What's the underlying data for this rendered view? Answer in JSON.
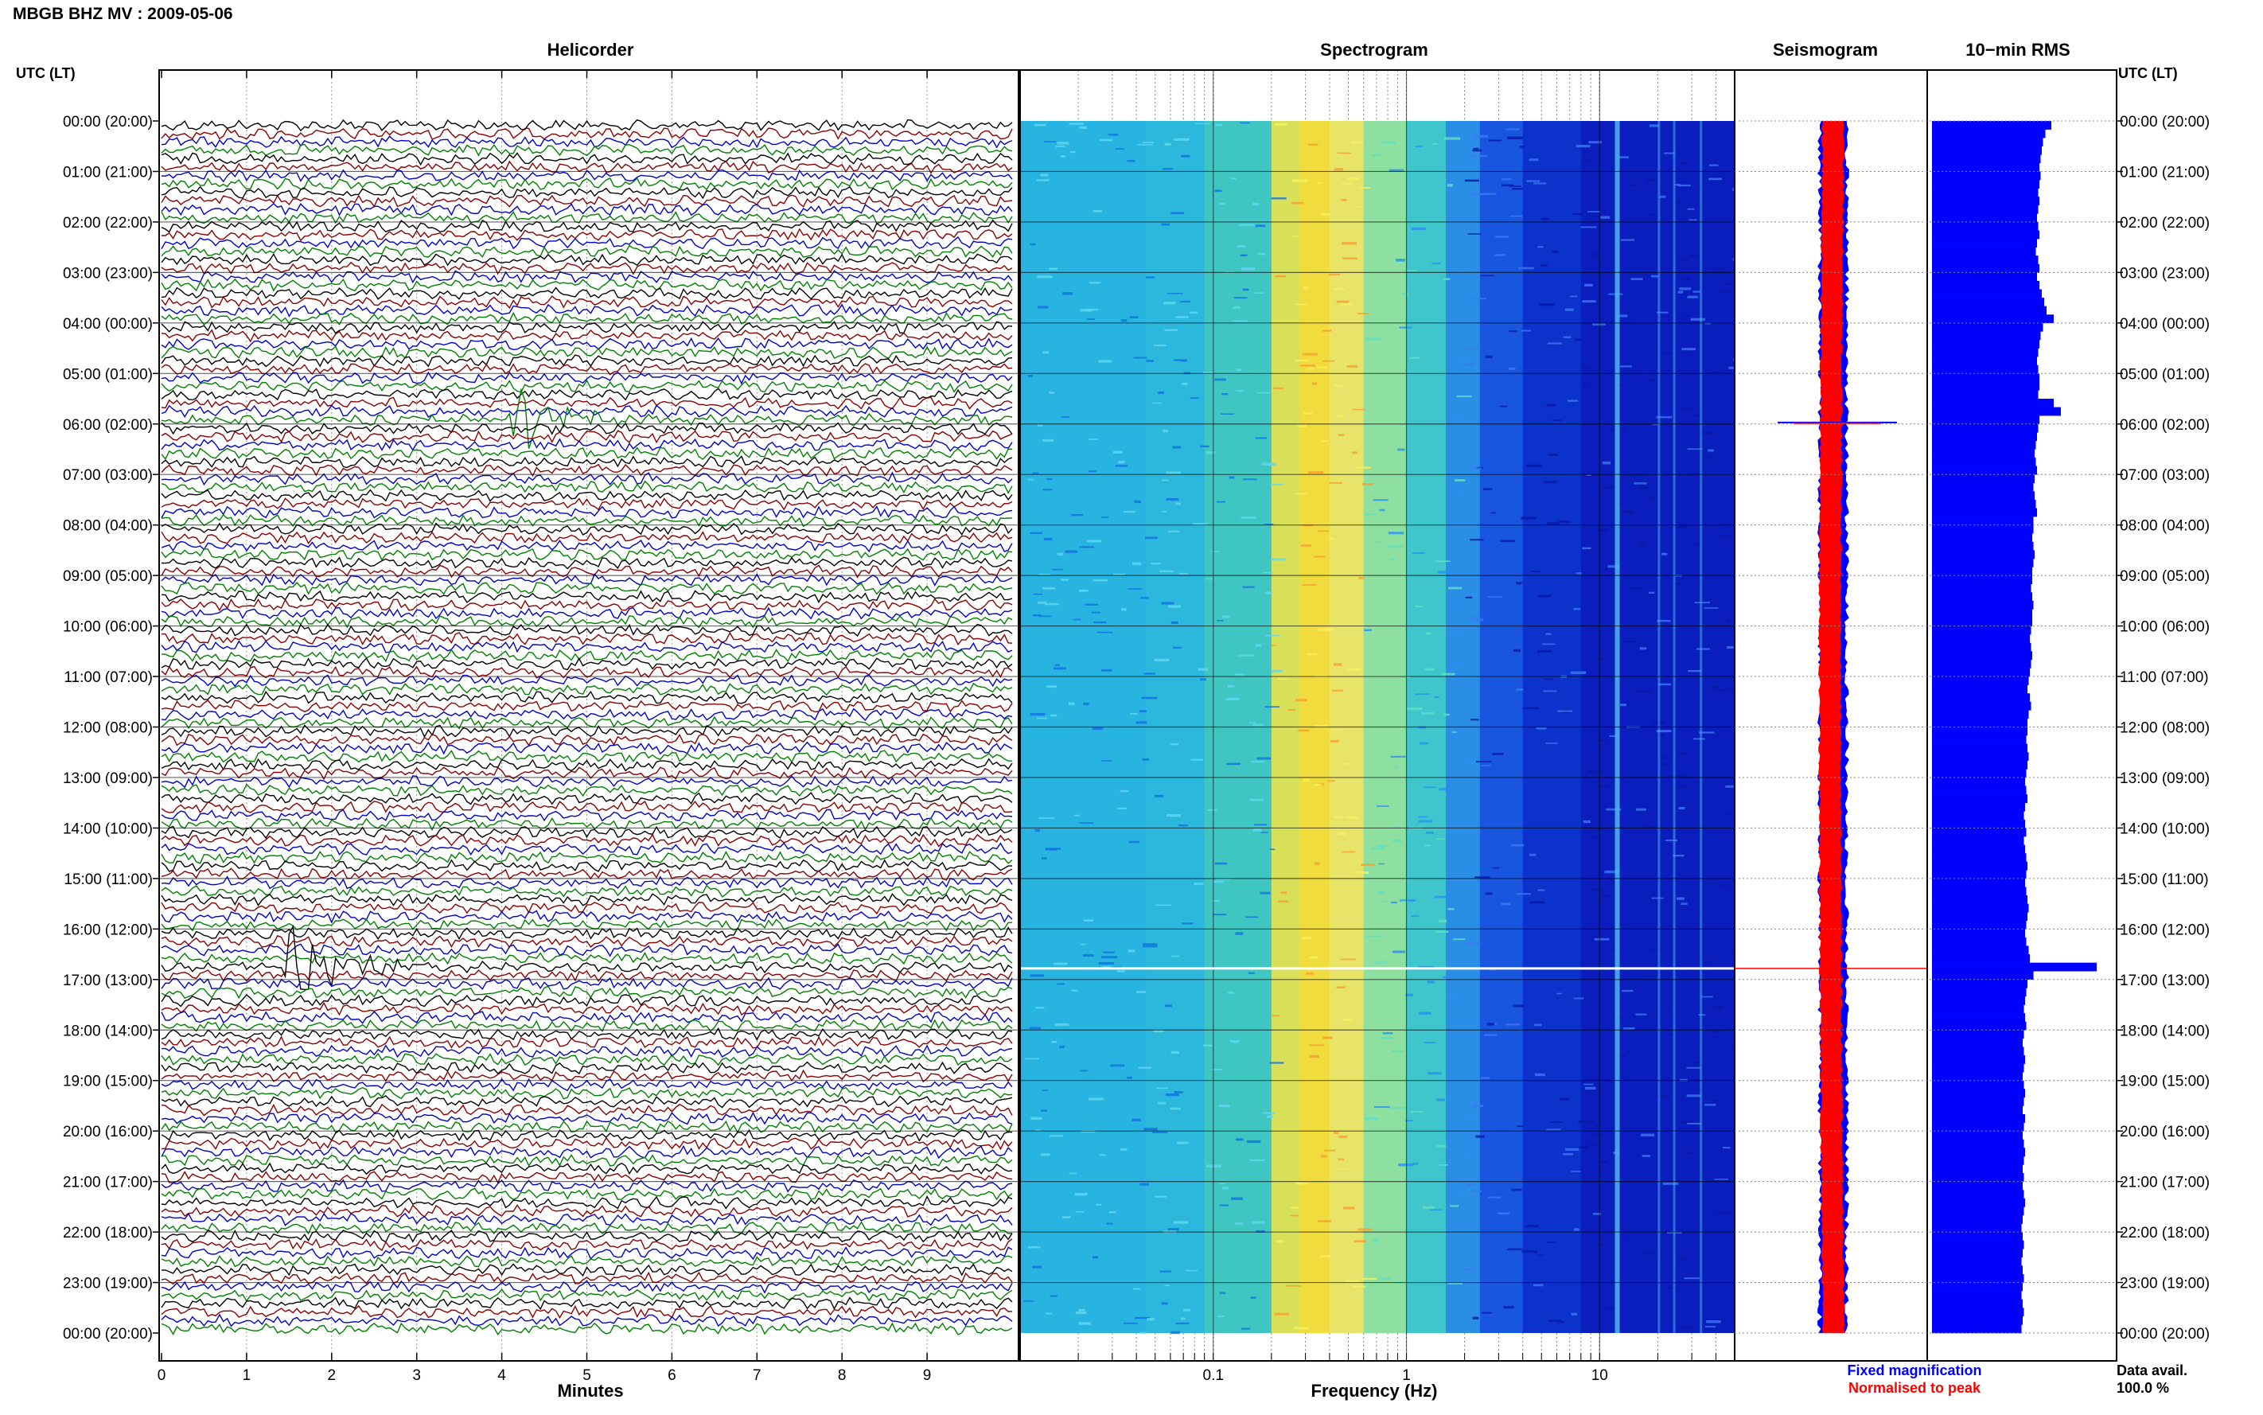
{
  "title": "MBGB BHZ MV : 2009-05-06",
  "panels": {
    "helicorder": "Helicorder",
    "spectrogram": "Spectrogram",
    "seismogram": "Seismogram",
    "rms": "10−min RMS"
  },
  "time_axis_label": "UTC (LT)",
  "legend": {
    "fixed": "Fixed magnification",
    "normalised": "Normalised to peak",
    "fixed_color": "#0000ff",
    "normalised_color": "#ff0000"
  },
  "data_avail": {
    "label": "Data avail.",
    "value": "100.0 %"
  },
  "colors": {
    "trace_cycle": [
      "#000000",
      "#8b0000",
      "#0000cc",
      "#008000"
    ],
    "rms_bar": "#0000ff",
    "seismogram_fill": "#ff0000",
    "spectrogram_colormap": "jet"
  },
  "chart_data": [
    {
      "type": "line",
      "name": "helicorder",
      "title": "Helicorder",
      "xlabel": "Minutes",
      "xlim": [
        0,
        10
      ],
      "x_ticks": [
        0,
        1,
        2,
        3,
        4,
        5,
        6,
        7,
        8,
        9
      ],
      "rows_per_hour": 6,
      "y_ticks": [
        "00:00 (20:00)",
        "01:00 (21:00)",
        "02:00 (22:00)",
        "03:00 (23:00)",
        "04:00 (00:00)",
        "05:00 (01:00)",
        "06:00 (02:00)",
        "07:00 (03:00)",
        "08:00 (04:00)",
        "09:00 (05:00)",
        "10:00 (06:00)",
        "11:00 (07:00)",
        "12:00 (08:00)",
        "13:00 (09:00)",
        "14:00 (10:00)",
        "15:00 (11:00)",
        "16:00 (12:00)",
        "17:00 (13:00)",
        "18:00 (14:00)",
        "19:00 (15:00)",
        "20:00 (16:00)",
        "21:00 (17:00)",
        "22:00 (18:00)",
        "23:00 (19:00)",
        "00:00 (20:00)"
      ],
      "events": [
        {
          "hour": 5.83,
          "minute": 4.2,
          "amplitude": 2.2
        },
        {
          "hour": 16.67,
          "minute": 1.6,
          "amplitude": 3.2
        }
      ]
    },
    {
      "type": "heatmap",
      "name": "spectrogram",
      "title": "Spectrogram",
      "xlabel": "Frequency (Hz)",
      "x_scale": "log",
      "xlim": [
        0.01,
        50
      ],
      "x_tick_labels": [
        "0.1",
        "1",
        "10"
      ],
      "x_tick_values": [
        0.1,
        1,
        10
      ],
      "ylim_hours": [
        0,
        24
      ],
      "peak_band_hz": [
        0.2,
        0.4
      ],
      "narrow_lines_hz": [
        12,
        20,
        24,
        33
      ]
    },
    {
      "type": "area",
      "name": "seismogram",
      "title": "Seismogram",
      "legend": [
        "Fixed magnification",
        "Normalised to peak"
      ],
      "spikes": [
        {
          "hour": 5.97,
          "width": 1.0
        },
        {
          "hour": 16.78,
          "width": 1.0
        }
      ]
    },
    {
      "type": "bar",
      "name": "rms",
      "title": "10−min RMS",
      "orientation": "horizontal",
      "bin_minutes": 10,
      "rms_values": [
        1.0,
        0.95,
        0.93,
        0.92,
        0.91,
        0.9,
        0.91,
        0.9,
        0.89,
        0.9,
        0.89,
        0.88,
        0.89,
        0.9,
        0.88,
        0.87,
        0.89,
        0.9,
        0.88,
        0.9,
        0.92,
        0.94,
        0.96,
        1.02,
        0.93,
        0.91,
        0.9,
        0.89,
        0.88,
        0.89,
        0.9,
        0.9,
        0.89,
        1.02,
        1.08,
        0.9,
        0.89,
        0.88,
        0.87,
        0.86,
        0.87,
        0.88,
        0.86,
        0.85,
        0.86,
        0.87,
        0.88,
        0.85,
        0.85,
        0.84,
        0.85,
        0.86,
        0.85,
        0.84,
        0.84,
        0.83,
        0.84,
        0.85,
        0.84,
        0.84,
        0.83,
        0.82,
        0.83,
        0.84,
        0.83,
        0.82,
        0.81,
        0.8,
        0.82,
        0.83,
        0.81,
        0.8,
        0.8,
        0.79,
        0.8,
        0.81,
        0.8,
        0.79,
        0.78,
        0.79,
        0.8,
        0.78,
        0.77,
        0.78,
        0.79,
        0.77,
        0.78,
        0.79,
        0.8,
        0.79,
        0.78,
        0.79,
        0.8,
        0.81,
        0.8,
        0.79,
        0.78,
        0.79,
        0.81,
        0.82,
        1.38,
        0.85,
        0.8,
        0.79,
        0.78,
        0.77,
        0.78,
        0.79,
        0.77,
        0.76,
        0.77,
        0.78,
        0.77,
        0.76,
        0.77,
        0.78,
        0.77,
        0.76,
        0.78,
        0.77,
        0.76,
        0.77,
        0.78,
        0.77,
        0.76,
        0.77,
        0.76,
        0.77,
        0.78,
        0.77,
        0.76,
        0.75,
        0.76,
        0.77,
        0.76,
        0.75,
        0.76,
        0.77,
        0.76,
        0.75,
        0.76,
        0.77,
        0.76,
        0.75
      ]
    }
  ]
}
